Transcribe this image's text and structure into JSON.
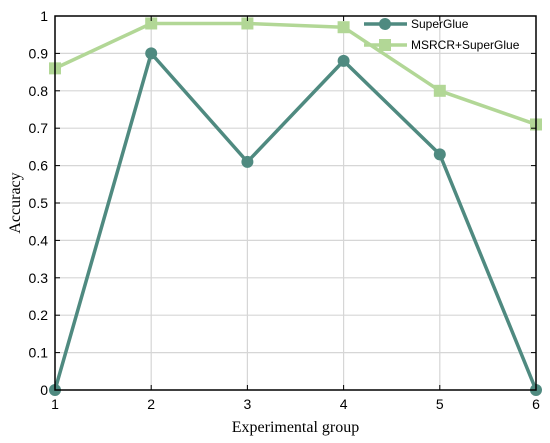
{
  "chart_data": {
    "type": "line",
    "x": [
      1,
      2,
      3,
      4,
      5,
      6
    ],
    "xlim": [
      1,
      6
    ],
    "ylim": [
      0,
      1
    ],
    "xticks": [
      1,
      2,
      3,
      4,
      5,
      6
    ],
    "yticks": [
      0,
      0.1,
      0.2,
      0.3,
      0.4,
      0.5,
      0.6,
      0.7,
      0.8,
      0.9,
      1
    ],
    "ytick_labels": [
      "0",
      "0.1",
      "0.2",
      "0.3",
      "0.4",
      "0.5",
      "0.6",
      "0.7",
      "0.8",
      "0.9",
      "1"
    ],
    "xlabel": "Experimental group",
    "ylabel": "Accuracy",
    "title": "",
    "grid": true,
    "legend_position": "top-right",
    "series": [
      {
        "name": "SuperGlue",
        "values": [
          0,
          0.9,
          0.61,
          0.88,
          0.63,
          0
        ],
        "color": "#4f8a80",
        "marker": "circle"
      },
      {
        "name": "MSRCR+SuperGlue",
        "values": [
          0.86,
          0.98,
          0.98,
          0.97,
          0.8,
          0.71
        ],
        "color": "#b2d796",
        "marker": "square"
      }
    ]
  }
}
